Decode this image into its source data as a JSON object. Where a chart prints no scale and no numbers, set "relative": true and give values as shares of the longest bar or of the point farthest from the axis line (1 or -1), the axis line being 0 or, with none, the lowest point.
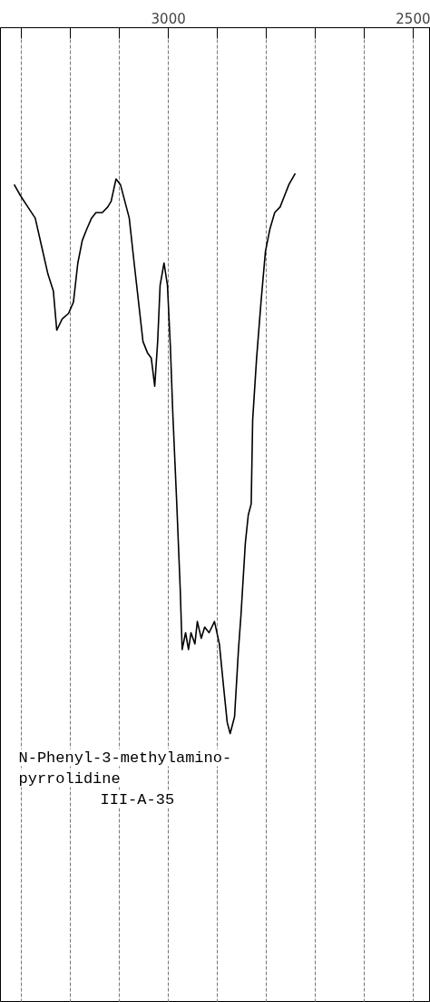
{
  "chart_data": {
    "type": "line",
    "relative": true,
    "x": [
      3315,
      3302,
      3287,
      3272,
      3259,
      3246,
      3235,
      3228,
      3217,
      3204,
      3194,
      3185,
      3176,
      3167,
      3157,
      3148,
      3135,
      3124,
      3117,
      3107,
      3098,
      3089,
      3080,
      3070,
      3061,
      3052,
      3043,
      3035,
      3028,
      3022,
      3017,
      3009,
      3002,
      2996,
      2991,
      2983,
      2976,
      2972,
      2965,
      2959,
      2954,
      2946,
      2941,
      2933,
      2926,
      2917,
      2906,
      2896,
      2887,
      2880,
      2874,
      2865,
      2857,
      2852,
      2843,
      2837,
      2831,
      2828,
      2820,
      2811,
      2802,
      2793,
      2783,
      2772,
      2763,
      2754,
      2741
    ],
    "series": [
      {
        "color": "#000000",
        "values": [
          0.98,
          0.96,
          0.94,
          0.92,
          0.87,
          0.82,
          0.79,
          0.72,
          0.74,
          0.75,
          0.77,
          0.84,
          0.88,
          0.9,
          0.92,
          0.93,
          0.93,
          0.94,
          0.95,
          0.99,
          0.98,
          0.95,
          0.92,
          0.84,
          0.77,
          0.7,
          0.68,
          0.67,
          0.62,
          0.7,
          0.8,
          0.84,
          0.8,
          0.69,
          0.57,
          0.41,
          0.26,
          0.15,
          0.18,
          0.15,
          0.18,
          0.16,
          0.2,
          0.17,
          0.19,
          0.18,
          0.2,
          0.16,
          0.08,
          0.02,
          0,
          0.03,
          0.15,
          0.21,
          0.34,
          0.39,
          0.41,
          0.56,
          0.67,
          0.77,
          0.86,
          0.9,
          0.93,
          0.94,
          0.96,
          0.98,
          1
        ]
      }
    ],
    "xlim": [
      3343,
      2465
    ],
    "xticks": [
      {
        "value": 3300,
        "label": null
      },
      {
        "value": 3200,
        "label": null
      },
      {
        "value": 3100,
        "label": null
      },
      3000,
      {
        "value": 2900,
        "label": null
      },
      {
        "value": 2800,
        "label": null
      },
      {
        "value": 2700,
        "label": null
      },
      {
        "value": 2600,
        "label": null
      },
      2500
    ],
    "grid": "x",
    "line_style": "solid",
    "marker": "none",
    "annotations": [
      "N-Phenyl-3-methylamino-",
      "pyrrolidine",
      "III-A-35"
    ]
  }
}
